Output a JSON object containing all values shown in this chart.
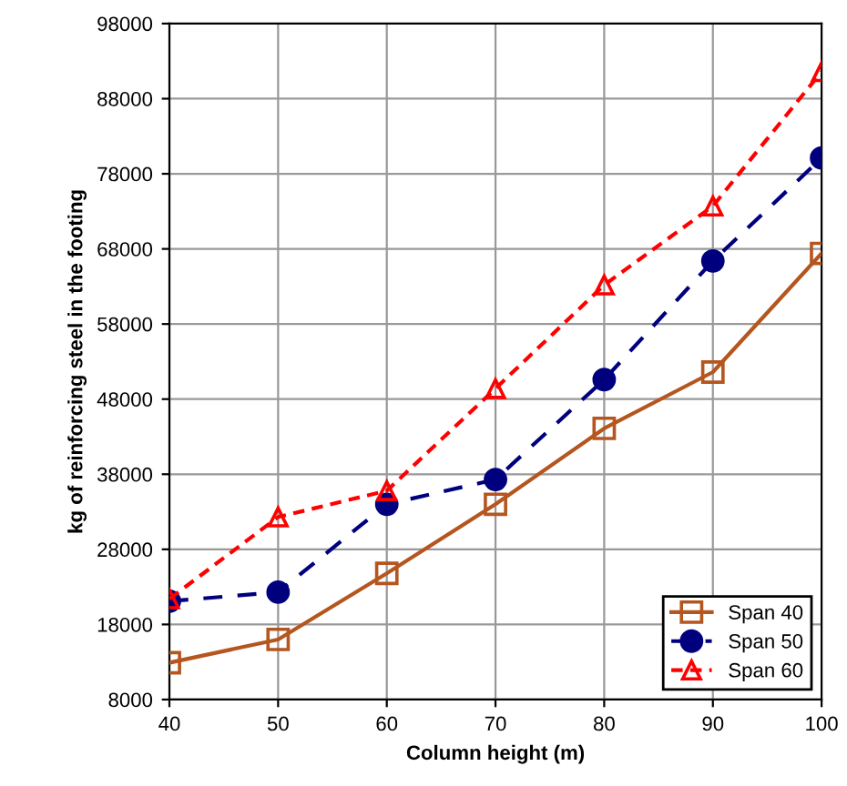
{
  "chart_data": {
    "type": "line",
    "xlabel": "Column height (m)",
    "ylabel": "kg of reinforcing steel in the footing",
    "x": [
      40,
      50,
      60,
      70,
      80,
      90,
      100
    ],
    "series": [
      {
        "name": "Span 40",
        "color": "#b5561f",
        "marker": "square",
        "line_style": "solid",
        "values": [
          12900,
          16000,
          24800,
          34000,
          44100,
          51600,
          67400
        ]
      },
      {
        "name": "Span 50",
        "color": "#00007f",
        "marker": "circle",
        "line_style": "dashed",
        "values": [
          21100,
          22300,
          34000,
          37300,
          50600,
          66400,
          80100
        ]
      },
      {
        "name": "Span 60",
        "color": "#ff0000",
        "marker": "triangle",
        "line_style": "dotted",
        "values": [
          21400,
          32300,
          35800,
          49400,
          63200,
          73700,
          91600
        ]
      }
    ],
    "xlim": [
      40,
      100
    ],
    "xticks": [
      40,
      50,
      60,
      70,
      80,
      90,
      100
    ],
    "ylim": [
      8000,
      98000
    ],
    "yticks": [
      8000,
      18000,
      28000,
      38000,
      48000,
      58000,
      68000,
      78000,
      88000,
      98000
    ],
    "grid": true,
    "legend": "bottom right"
  }
}
